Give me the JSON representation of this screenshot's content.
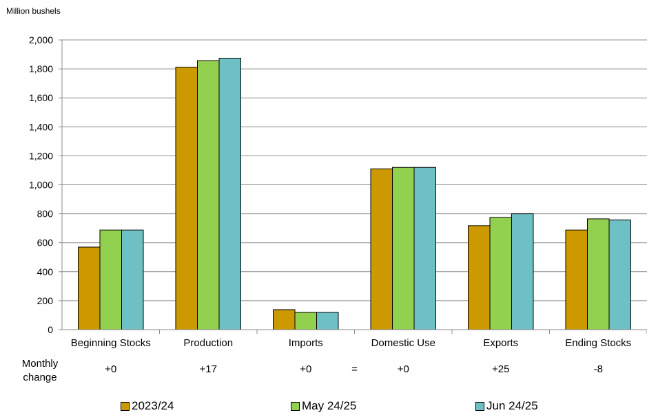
{
  "chart_data": {
    "type": "bar",
    "ylabel": "Million bushels",
    "ylim": [
      0,
      2000
    ],
    "ytick_step": 200,
    "yticks": [
      "0",
      "200",
      "400",
      "600",
      "800",
      "1,000",
      "1,200",
      "1,400",
      "1,600",
      "1,800",
      "2,000"
    ],
    "grid": true,
    "legend_position": "bottom",
    "categories": [
      "Beginning Stocks",
      "Production",
      "Imports",
      "Domestic Use",
      "Exports",
      "Ending Stocks"
    ],
    "series": [
      {
        "name": "2023/24",
        "color": "#CC9900",
        "values": [
          570,
          1812,
          138,
          1110,
          718,
          688
        ]
      },
      {
        "name": "May 24/25",
        "color": "#92D050",
        "values": [
          688,
          1857,
          120,
          1120,
          775,
          765
        ]
      },
      {
        "name": "Jun 24/25",
        "color": "#6FC0C4",
        "values": [
          688,
          1874,
          120,
          1120,
          800,
          757
        ]
      }
    ],
    "monthly_change_label": [
      "Monthly",
      "change"
    ],
    "monthly_change": [
      "+0",
      "+17",
      "+0",
      "+0",
      "+25",
      "-8"
    ],
    "equals_sign": "="
  }
}
